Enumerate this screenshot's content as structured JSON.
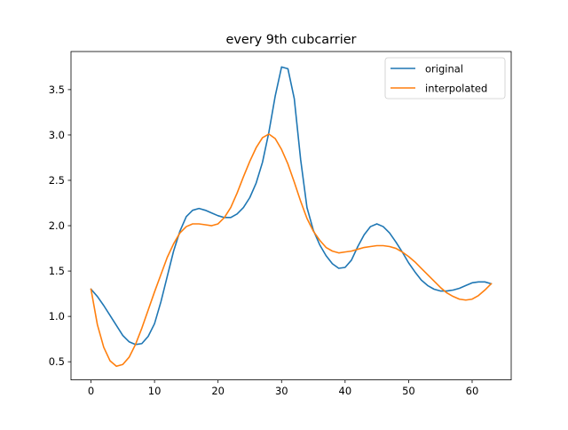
{
  "chart_data": {
    "type": "line",
    "title": "every 9th cubcarrier",
    "xlabel": "",
    "ylabel": "",
    "xlim": [
      -3.15,
      66.15
    ],
    "ylim": [
      0.3,
      3.92
    ],
    "xticks": [
      0,
      10,
      20,
      30,
      40,
      50,
      60
    ],
    "yticks": [
      0.5,
      1.0,
      1.5,
      2.0,
      2.5,
      3.0,
      3.5
    ],
    "xtick_labels": [
      "0",
      "10",
      "20",
      "30",
      "40",
      "50",
      "60"
    ],
    "ytick_labels": [
      "0.5",
      "1.0",
      "1.5",
      "2.0",
      "2.5",
      "3.0",
      "3.5"
    ],
    "grid": false,
    "legend_position": "top-right",
    "series": [
      {
        "name": "original",
        "color": "#1f77b4",
        "x": [
          0,
          1,
          2,
          3,
          4,
          5,
          6,
          7,
          8,
          9,
          10,
          11,
          12,
          13,
          14,
          15,
          16,
          17,
          18,
          19,
          20,
          21,
          22,
          23,
          24,
          25,
          26,
          27,
          28,
          29,
          30,
          31,
          32,
          33,
          34,
          35,
          36,
          37,
          38,
          39,
          40,
          41,
          42,
          43,
          44,
          45,
          46,
          47,
          48,
          49,
          50,
          51,
          52,
          53,
          54,
          55,
          56,
          57,
          58,
          59,
          60,
          61,
          62,
          63
        ],
        "y": [
          1.3,
          1.22,
          1.12,
          1.01,
          0.9,
          0.79,
          0.72,
          0.69,
          0.7,
          0.78,
          0.92,
          1.16,
          1.44,
          1.72,
          1.94,
          2.1,
          2.17,
          2.19,
          2.17,
          2.14,
          2.11,
          2.09,
          2.09,
          2.13,
          2.2,
          2.31,
          2.47,
          2.7,
          3.03,
          3.43,
          3.75,
          3.73,
          3.4,
          2.73,
          2.2,
          1.95,
          1.79,
          1.67,
          1.58,
          1.53,
          1.54,
          1.62,
          1.77,
          1.9,
          1.99,
          2.02,
          1.99,
          1.92,
          1.82,
          1.71,
          1.59,
          1.49,
          1.4,
          1.34,
          1.3,
          1.28,
          1.28,
          1.29,
          1.31,
          1.34,
          1.37,
          1.38,
          1.38,
          1.36
        ]
      },
      {
        "name": "interpolated",
        "color": "#ff7f0e",
        "x": [
          0,
          1,
          2,
          3,
          4,
          5,
          6,
          7,
          8,
          9,
          10,
          11,
          12,
          13,
          14,
          15,
          16,
          17,
          18,
          19,
          20,
          21,
          22,
          23,
          24,
          25,
          26,
          27,
          28,
          29,
          30,
          31,
          32,
          33,
          34,
          35,
          36,
          37,
          38,
          39,
          40,
          41,
          42,
          43,
          44,
          45,
          46,
          47,
          48,
          49,
          50,
          51,
          52,
          53,
          54,
          55,
          56,
          57,
          58,
          59,
          60,
          61,
          62,
          63
        ],
        "y": [
          1.3,
          0.91,
          0.66,
          0.51,
          0.45,
          0.47,
          0.55,
          0.69,
          0.87,
          1.07,
          1.27,
          1.46,
          1.65,
          1.8,
          1.92,
          1.99,
          2.02,
          2.02,
          2.01,
          2.0,
          2.02,
          2.09,
          2.2,
          2.36,
          2.54,
          2.71,
          2.86,
          2.97,
          3.01,
          2.96,
          2.84,
          2.68,
          2.48,
          2.27,
          2.08,
          1.94,
          1.84,
          1.76,
          1.72,
          1.7,
          1.71,
          1.72,
          1.74,
          1.76,
          1.77,
          1.78,
          1.78,
          1.77,
          1.75,
          1.71,
          1.66,
          1.6,
          1.53,
          1.46,
          1.39,
          1.32,
          1.26,
          1.22,
          1.19,
          1.18,
          1.19,
          1.23,
          1.29,
          1.36
        ]
      }
    ]
  }
}
